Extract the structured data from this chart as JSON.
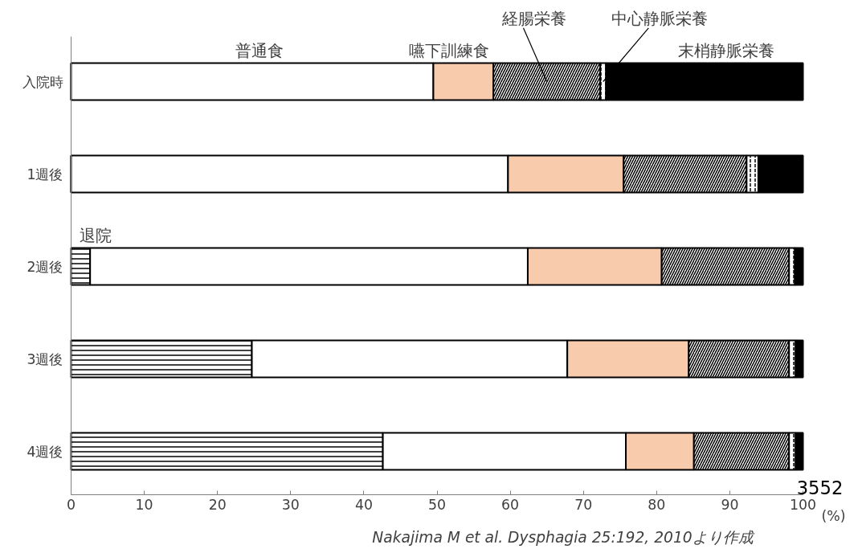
{
  "chart_data": {
    "type": "bar",
    "orientation": "horizontal",
    "stacked": true,
    "xlabel": "(%)",
    "categories": [
      "入院時",
      "1週後",
      "2週後",
      "3週後",
      "4週後"
    ],
    "series": [
      {
        "name": "退院",
        "color": "#ffffff",
        "values": [
          0,
          0,
          2.6,
          24.7,
          42.6
        ]
      },
      {
        "name": "普通食",
        "color": "#ffffff",
        "values": [
          49.5,
          59.7,
          59.8,
          43.1,
          33.2
        ]
      },
      {
        "name": "嚥下訓練食",
        "color": "#f8cbad",
        "values": [
          8.2,
          15.8,
          18.3,
          16.6,
          9.3
        ]
      },
      {
        "name": "経腸栄養",
        "color": "#ffffff",
        "values": [
          14.6,
          16.8,
          17.4,
          13.7,
          13.0
        ]
      },
      {
        "name": "中心静脈栄養",
        "color": "#ffffff",
        "values": [
          0.8,
          1.6,
          0.8,
          0.9,
          0.9
        ]
      },
      {
        "name": "末梢静脈栄養",
        "color": "#000000",
        "values": [
          26.9,
          6.1,
          1.1,
          1.0,
          1.0
        ]
      }
    ],
    "xlim": [
      0,
      100
    ],
    "xticks": [
      0,
      10,
      20,
      30,
      40,
      50,
      60,
      70,
      80,
      90,
      100
    ],
    "grid": false,
    "legend": false,
    "annotations": [
      "3552",
      "Nakajima M et al. Dysphagia 25:192, 2010より作成"
    ]
  }
}
